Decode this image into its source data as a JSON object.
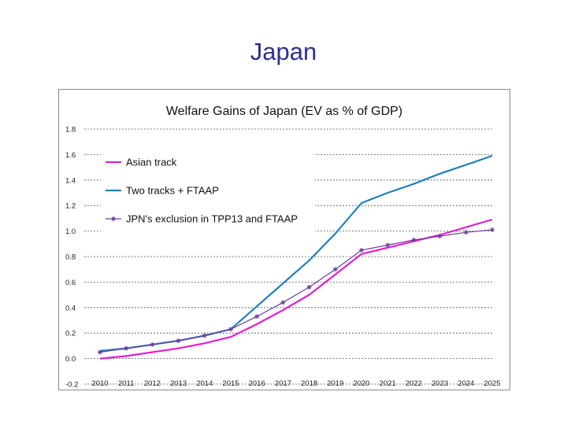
{
  "slide": {
    "title": "Japan"
  },
  "chart_data": {
    "type": "line",
    "title": "Welfare Gains of Japan (EV as % of GDP)",
    "xlabel": "",
    "ylabel": "",
    "x": [
      "2010",
      "2011",
      "2012",
      "2013",
      "2014",
      "2015",
      "2016",
      "2017",
      "2018",
      "2019",
      "2020",
      "2021",
      "2022",
      "2023",
      "2024",
      "2025"
    ],
    "yticks": [
      "-0.2",
      "0.0",
      "0.2",
      "0.4",
      "0.6",
      "0.8",
      "1.0",
      "1.2",
      "1.4",
      "1.6",
      "1.8"
    ],
    "ylim": [
      -0.2,
      1.8
    ],
    "grid": "horizontal-dashed",
    "legend_position": "top-left",
    "series": [
      {
        "name": "Asian track",
        "color": "#e020d0",
        "marker": "none",
        "values": [
          0.0,
          0.02,
          0.05,
          0.08,
          0.12,
          0.17,
          0.27,
          0.38,
          0.5,
          0.66,
          0.82,
          0.87,
          0.92,
          0.97,
          1.03,
          1.09
        ]
      },
      {
        "name": "Two tracks + FTAAP",
        "color": "#2080c0",
        "marker": "none",
        "values": [
          0.06,
          0.08,
          0.11,
          0.14,
          0.18,
          0.23,
          0.41,
          0.59,
          0.77,
          0.98,
          1.22,
          1.3,
          1.37,
          1.45,
          1.52,
          1.59
        ]
      },
      {
        "name": "JPN's exclusion in TPP13 and FTAAP",
        "color": "#6a3e9a",
        "marker": "asterisk",
        "values": [
          0.05,
          0.08,
          0.11,
          0.14,
          0.18,
          0.23,
          0.33,
          0.44,
          0.56,
          0.7,
          0.85,
          0.89,
          0.93,
          0.96,
          0.99,
          1.01
        ]
      }
    ]
  }
}
